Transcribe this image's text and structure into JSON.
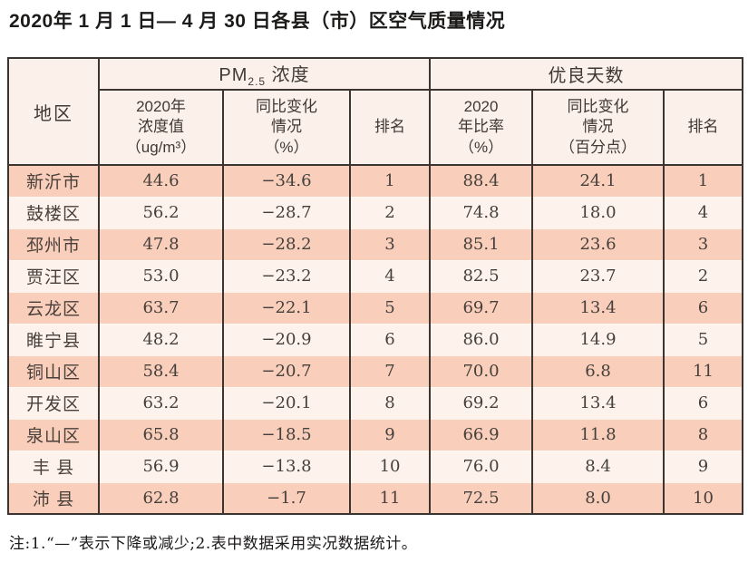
{
  "page": {
    "title": "2020年 1 月 1 日— 4 月 30 日各县（市）区空气质量情况"
  },
  "table": {
    "header": {
      "region": "地区",
      "pm_group": {
        "prefix": "PM",
        "sub": "2.5",
        "suffix": " 浓度"
      },
      "good_group": "优良天数",
      "pm_value": "2020年\n浓度值\n（ug/m³）",
      "pm_change": "同比变化\n情况\n（%）",
      "pm_rank": "排名",
      "good_ratio": "2020\n年比率\n（%）",
      "good_change": "同比变化\n情况\n（百分点）",
      "good_rank": "排名"
    },
    "rows": [
      [
        "新沂市",
        "44.6",
        "−34.6",
        "1",
        "88.4",
        "24.1",
        "1"
      ],
      [
        "鼓楼区",
        "56.2",
        "−28.7",
        "2",
        "74.8",
        "18.0",
        "4"
      ],
      [
        "邳州市",
        "47.8",
        "−28.2",
        "3",
        "85.1",
        "23.6",
        "3"
      ],
      [
        "贾汪区",
        "53.0",
        "−23.2",
        "4",
        "82.5",
        "23.7",
        "2"
      ],
      [
        "云龙区",
        "63.7",
        "−22.1",
        "5",
        "69.7",
        "13.4",
        "6"
      ],
      [
        "睢宁县",
        "48.2",
        "−20.9",
        "6",
        "86.0",
        "14.9",
        "5"
      ],
      [
        "铜山区",
        "58.4",
        "−20.7",
        "7",
        "70.0",
        "6.8",
        "11"
      ],
      [
        "开发区",
        "63.2",
        "−20.1",
        "8",
        "69.2",
        "13.4",
        "6"
      ],
      [
        "泉山区",
        "65.8",
        "−18.5",
        "9",
        "66.9",
        "11.8",
        "8"
      ],
      [
        "丰 县",
        "56.9",
        "−13.8",
        "10",
        "76.0",
        "8.4",
        "9"
      ],
      [
        "沛 县",
        "62.8",
        "−1.7",
        "11",
        "72.5",
        "8.0",
        "10"
      ]
    ],
    "colors": {
      "border": "#3b3531",
      "row_odd": "#f9cebb",
      "row_even": "#fdf3ec",
      "header_bg": "#fbf1ea"
    }
  },
  "footnote": "注:1.“—”表示下降或减少;2.表中数据采用实况数据统计。"
}
